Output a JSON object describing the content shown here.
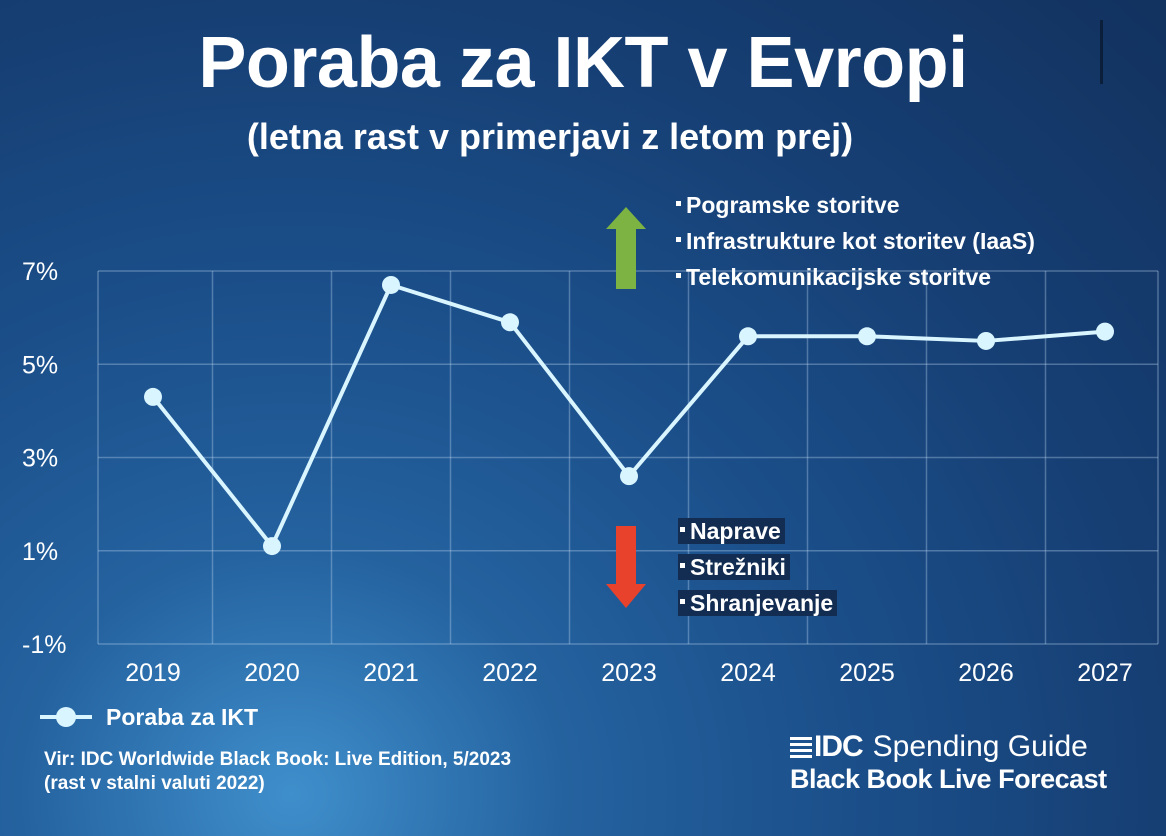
{
  "title": "Poraba za IKT v Evropi",
  "subtitle": "(letna rast v primerjavi z letom prej)",
  "chart_data": {
    "type": "line",
    "x": [
      "2019",
      "2020",
      "2021",
      "2022",
      "2023",
      "2024",
      "2025",
      "2026",
      "2027"
    ],
    "series": [
      {
        "name": "Poraba za IKT",
        "values": [
          4.3,
          1.1,
          6.7,
          5.9,
          2.6,
          5.6,
          5.6,
          5.5,
          5.7
        ]
      }
    ],
    "y_ticks": [
      "7%",
      "5%",
      "3%",
      "1%",
      "-1%"
    ],
    "y_tick_values": [
      7,
      5,
      3,
      1,
      -1
    ],
    "ylim": [
      -1,
      7
    ],
    "grid": true,
    "legend_position": "bottom-left",
    "line_color": "#d9f5ff"
  },
  "growth_up": {
    "arrow_color": "#7cb342",
    "items": [
      "Pogramske storitve",
      "Infrastrukture kot storitev (IaaS)",
      "Telekomunikacijske storitve"
    ]
  },
  "growth_down": {
    "arrow_color": "#e8412c",
    "items": [
      "Naprave",
      "Strežniki",
      "Shranjevanje"
    ]
  },
  "legend": {
    "label": "Poraba za IKT"
  },
  "source": {
    "line1": "Vir: IDC Worldwide Black Book: Live Edition, 5/2023",
    "line2": "(rast v stalni valuti 2022)"
  },
  "logo": {
    "brand": "IDC",
    "top": "Spending Guide",
    "bottom": "Black Book Live Forecast"
  }
}
